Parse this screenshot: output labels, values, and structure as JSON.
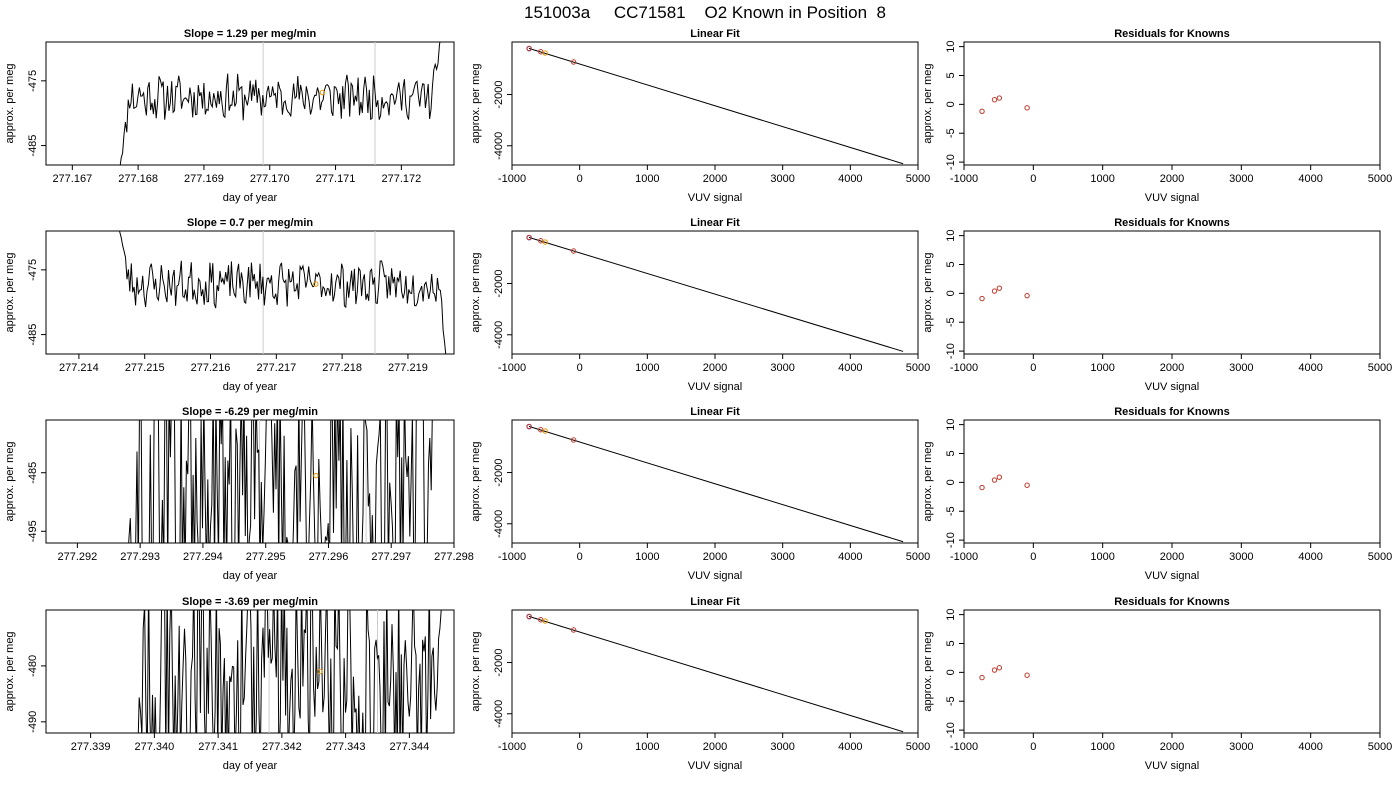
{
  "figure": {
    "title": "151003a     CC71581    O2 Known in Position  8"
  },
  "chart_data": [
    {
      "type": "line",
      "panel": "row1-trace",
      "title": "Slope =  1.29  per meg/min",
      "xlabel": "day of year",
      "ylabel": "approx. per meg",
      "xlim": [
        277.1666,
        277.1728
      ],
      "ylim": [
        -488,
        -469
      ],
      "xticks": [
        "277.167",
        "277.168",
        "277.169",
        "277.170",
        "277.171",
        "277.172"
      ],
      "xtick_values": [
        277.167,
        277.168,
        277.169,
        277.17,
        277.171,
        277.172
      ],
      "yticks": [
        "-475",
        "-485"
      ],
      "ytick_values": [
        -475,
        -485
      ],
      "vlines": [
        277.1699,
        277.1716
      ],
      "marker": {
        "x": 277.1708,
        "y": -476.8
      },
      "trace": {
        "x_start": 277.1677,
        "x_end": 277.1726,
        "baseline": -477.5,
        "noise": 3.0,
        "seed": 11,
        "start_from": -490,
        "end_to": -468,
        "spiky": false
      }
    },
    {
      "type": "scatter",
      "panel": "row1-fit",
      "title": "Linear Fit",
      "xlabel": "VUV signal",
      "ylabel": "approx. per meg",
      "xlim": [
        -1000,
        5000
      ],
      "ylim": [
        -4750,
        50
      ],
      "xticks": [
        "-1000",
        "0",
        "1000",
        "2000",
        "3000",
        "4000",
        "5000"
      ],
      "xtick_values": [
        -1000,
        0,
        1000,
        2000,
        3000,
        4000,
        5000
      ],
      "yticks": [
        "-2000",
        "-4000"
      ],
      "ytick_values": [
        -2000,
        -4000
      ],
      "line": {
        "x": [
          -750,
          4780
        ],
        "y": [
          -200,
          -4700
        ]
      },
      "points": [
        {
          "x": -745,
          "y": -210,
          "color": "blue"
        },
        {
          "x": -748,
          "y": -200,
          "color": "red"
        },
        {
          "x": -575,
          "y": -330,
          "color": "red"
        },
        {
          "x": -510,
          "y": -380,
          "color": "orange"
        },
        {
          "x": -90,
          "y": -730,
          "color": "red"
        }
      ]
    },
    {
      "type": "scatter",
      "panel": "row1-resid",
      "title": "Residuals for Knowns",
      "xlabel": "VUV signal",
      "ylabel": "approx. per meg",
      "xlim": [
        -1000,
        5000
      ],
      "ylim": [
        -10.5,
        10.8
      ],
      "xticks": [
        "-1000",
        "0",
        "1000",
        "2000",
        "3000",
        "4000",
        "5000"
      ],
      "xtick_values": [
        -1000,
        0,
        1000,
        2000,
        3000,
        4000,
        5000
      ],
      "yticks": [
        "10",
        "5",
        "0",
        "-5",
        "-10"
      ],
      "ytick_values": [
        10,
        5,
        0,
        -5,
        -10
      ],
      "points": [
        {
          "x": -740,
          "y": -1.2,
          "color": "red"
        },
        {
          "x": -560,
          "y": 0.8,
          "color": "red"
        },
        {
          "x": -490,
          "y": 1.1,
          "color": "red"
        },
        {
          "x": -90,
          "y": -0.6,
          "color": "red"
        }
      ]
    },
    {
      "type": "line",
      "panel": "row2-trace",
      "title": "Slope =  0.7  per meg/min",
      "xlabel": "day of year",
      "ylabel": "approx. per meg",
      "xlim": [
        277.2135,
        277.2197
      ],
      "ylim": [
        -488,
        -469
      ],
      "xticks": [
        "277.214",
        "277.215",
        "277.216",
        "277.217",
        "277.218",
        "277.219"
      ],
      "xtick_values": [
        277.214,
        277.215,
        277.216,
        277.217,
        277.218,
        277.219
      ],
      "yticks": [
        "-475",
        "-485"
      ],
      "ytick_values": [
        -475,
        -485
      ],
      "vlines": [
        277.2168,
        277.2185
      ],
      "marker": {
        "x": 277.2176,
        "y": -477.2
      },
      "trace": {
        "x_start": 277.2146,
        "x_end": 277.2196,
        "baseline": -477.2,
        "noise": 3.0,
        "seed": 23,
        "start_from": -468,
        "end_to": -490,
        "spiky": false
      }
    },
    {
      "type": "scatter",
      "panel": "row2-fit",
      "title": "Linear Fit",
      "xlabel": "VUV signal",
      "ylabel": "approx. per meg",
      "xlim": [
        -1000,
        5000
      ],
      "ylim": [
        -4750,
        50
      ],
      "xticks": [
        "-1000",
        "0",
        "1000",
        "2000",
        "3000",
        "4000",
        "5000"
      ],
      "xtick_values": [
        -1000,
        0,
        1000,
        2000,
        3000,
        4000,
        5000
      ],
      "yticks": [
        "-2000",
        "-4000"
      ],
      "ytick_values": [
        -2000,
        -4000
      ],
      "line": {
        "x": [
          -750,
          4780
        ],
        "y": [
          -200,
          -4650
        ]
      },
      "points": [
        {
          "x": -745,
          "y": -210,
          "color": "blue"
        },
        {
          "x": -748,
          "y": -200,
          "color": "red"
        },
        {
          "x": -575,
          "y": -330,
          "color": "red"
        },
        {
          "x": -510,
          "y": -380,
          "color": "orange"
        },
        {
          "x": -90,
          "y": -730,
          "color": "red"
        }
      ]
    },
    {
      "type": "scatter",
      "panel": "row2-resid",
      "title": "Residuals for Knowns",
      "xlabel": "VUV signal",
      "ylabel": "approx. per meg",
      "xlim": [
        -1000,
        5000
      ],
      "ylim": [
        -10.5,
        10.8
      ],
      "xticks": [
        "-1000",
        "0",
        "1000",
        "2000",
        "3000",
        "4000",
        "5000"
      ],
      "xtick_values": [
        -1000,
        0,
        1000,
        2000,
        3000,
        4000,
        5000
      ],
      "yticks": [
        "10",
        "5",
        "0",
        "-5",
        "-10"
      ],
      "ytick_values": [
        10,
        5,
        0,
        -5,
        -10
      ],
      "points": [
        {
          "x": -740,
          "y": -0.9,
          "color": "red"
        },
        {
          "x": -560,
          "y": 0.4,
          "color": "red"
        },
        {
          "x": -490,
          "y": 0.9,
          "color": "red"
        },
        {
          "x": -90,
          "y": -0.4,
          "color": "red"
        }
      ]
    },
    {
      "type": "line",
      "panel": "row3-trace",
      "title": "Slope =  -6.29  per meg/min",
      "xlabel": "day of year",
      "ylabel": "approx. per meg",
      "xlim": [
        277.2915,
        277.298
      ],
      "ylim": [
        -497,
        -476
      ],
      "xticks": [
        "277.292",
        "277.293",
        "277.294",
        "277.295",
        "277.296",
        "277.297",
        "277.298"
      ],
      "xtick_values": [
        277.292,
        277.293,
        277.294,
        277.295,
        277.296,
        277.297,
        277.298
      ],
      "yticks": [
        "-485",
        "-495"
      ],
      "ytick_values": [
        -485,
        -495
      ],
      "vlines": [
        277.2949,
        277.2966
      ],
      "marker": {
        "x": 277.2958,
        "y": -485.5
      },
      "trace": {
        "x_start": 277.2928,
        "x_end": 277.2977,
        "baseline": -486,
        "noise": 14.0,
        "seed": 37,
        "start_from": -500,
        "end_to": -474,
        "spiky": true
      }
    },
    {
      "type": "scatter",
      "panel": "row3-fit",
      "title": "Linear Fit",
      "xlabel": "VUV signal",
      "ylabel": "approx. per meg",
      "xlim": [
        -1000,
        5000
      ],
      "ylim": [
        -4750,
        50
      ],
      "xticks": [
        "-1000",
        "0",
        "1000",
        "2000",
        "3000",
        "4000",
        "5000"
      ],
      "xtick_values": [
        -1000,
        0,
        1000,
        2000,
        3000,
        4000,
        5000
      ],
      "yticks": [
        "-2000",
        "-4000"
      ],
      "ytick_values": [
        -2000,
        -4000
      ],
      "line": {
        "x": [
          -750,
          4780
        ],
        "y": [
          -200,
          -4700
        ]
      },
      "points": [
        {
          "x": -745,
          "y": -210,
          "color": "blue"
        },
        {
          "x": -748,
          "y": -200,
          "color": "red"
        },
        {
          "x": -575,
          "y": -330,
          "color": "red"
        },
        {
          "x": -510,
          "y": -380,
          "color": "orange"
        },
        {
          "x": -90,
          "y": -730,
          "color": "red"
        }
      ]
    },
    {
      "type": "scatter",
      "panel": "row3-resid",
      "title": "Residuals for Knowns",
      "xlabel": "VUV signal",
      "ylabel": "approx. per meg",
      "xlim": [
        -1000,
        5000
      ],
      "ylim": [
        -10.5,
        10.8
      ],
      "xticks": [
        "-1000",
        "0",
        "1000",
        "2000",
        "3000",
        "4000",
        "5000"
      ],
      "xtick_values": [
        -1000,
        0,
        1000,
        2000,
        3000,
        4000,
        5000
      ],
      "yticks": [
        "10",
        "5",
        "0",
        "-5",
        "-10"
      ],
      "ytick_values": [
        10,
        5,
        0,
        -5,
        -10
      ],
      "points": [
        {
          "x": -740,
          "y": -0.9,
          "color": "red"
        },
        {
          "x": -560,
          "y": 0.4,
          "color": "red"
        },
        {
          "x": -490,
          "y": 0.9,
          "color": "red"
        },
        {
          "x": -90,
          "y": -0.5,
          "color": "red"
        }
      ]
    },
    {
      "type": "line",
      "panel": "row4-trace",
      "title": "Slope =  -3.69  per meg/min",
      "xlabel": "day of year",
      "ylabel": "approx. per meg",
      "xlim": [
        277.3383,
        277.3447
      ],
      "ylim": [
        -492,
        -470
      ],
      "xticks": [
        "277.339",
        "277.340",
        "277.341",
        "277.342",
        "277.343",
        "277.344"
      ],
      "xtick_values": [
        277.339,
        277.34,
        277.341,
        277.342,
        277.343,
        277.344
      ],
      "yticks": [
        "-480",
        "-490"
      ],
      "ytick_values": [
        -480,
        -490
      ],
      "vlines": [
        277.3418,
        277.3435
      ],
      "marker": {
        "x": 277.3426,
        "y": -481.0
      },
      "trace": {
        "x_start": 277.3397,
        "x_end": 277.3445,
        "baseline": -481,
        "noise": 9.0,
        "seed": 53,
        "start_from": -498,
        "end_to": -470,
        "spiky": true
      }
    },
    {
      "type": "scatter",
      "panel": "row4-fit",
      "title": "Linear Fit",
      "xlabel": "VUV signal",
      "ylabel": "approx. per meg",
      "xlim": [
        -1000,
        5000
      ],
      "ylim": [
        -4750,
        50
      ],
      "xticks": [
        "-1000",
        "0",
        "1000",
        "2000",
        "3000",
        "4000",
        "5000"
      ],
      "xtick_values": [
        -1000,
        0,
        1000,
        2000,
        3000,
        4000,
        5000
      ],
      "yticks": [
        "-2000",
        "-4000"
      ],
      "ytick_values": [
        -2000,
        -4000
      ],
      "line": {
        "x": [
          -750,
          4780
        ],
        "y": [
          -200,
          -4700
        ]
      },
      "points": [
        {
          "x": -745,
          "y": -210,
          "color": "blue"
        },
        {
          "x": -748,
          "y": -200,
          "color": "red"
        },
        {
          "x": -575,
          "y": -330,
          "color": "red"
        },
        {
          "x": -510,
          "y": -380,
          "color": "orange"
        },
        {
          "x": -90,
          "y": -730,
          "color": "red"
        }
      ]
    },
    {
      "type": "scatter",
      "panel": "row4-resid",
      "title": "Residuals for Knowns",
      "xlabel": "VUV signal",
      "ylabel": "approx. per meg",
      "xlim": [
        -1000,
        5000
      ],
      "ylim": [
        -10.5,
        10.8
      ],
      "xticks": [
        "-1000",
        "0",
        "1000",
        "2000",
        "3000",
        "4000",
        "5000"
      ],
      "xtick_values": [
        -1000,
        0,
        1000,
        2000,
        3000,
        4000,
        5000
      ],
      "yticks": [
        "10",
        "5",
        "0",
        "-5",
        "-10"
      ],
      "ytick_values": [
        10,
        5,
        0,
        -5,
        -10
      ],
      "points": [
        {
          "x": -740,
          "y": -0.9,
          "color": "red"
        },
        {
          "x": -560,
          "y": 0.4,
          "color": "red"
        },
        {
          "x": -490,
          "y": 0.8,
          "color": "red"
        },
        {
          "x": -90,
          "y": -0.5,
          "color": "red"
        }
      ]
    }
  ]
}
